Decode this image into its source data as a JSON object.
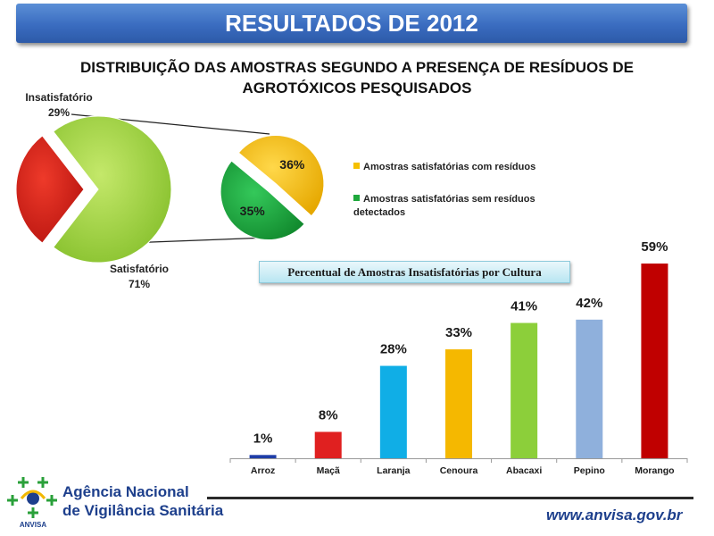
{
  "header": {
    "title": "RESULTADOS DE 2012",
    "subtitle_line1": "DISTRIBUIÇÃO DAS AMOSTRAS SEGUNDO A PRESENÇA DE RESÍDUOS DE",
    "subtitle_line2": "AGROTÓXICOS PESQUISADOS"
  },
  "chart_data": [
    {
      "type": "pie",
      "labels": [
        "Insatisfatório",
        "Satisfatório"
      ],
      "values": [
        29,
        71
      ],
      "value_labels": [
        "29%",
        "71%"
      ],
      "colors": [
        "#d32f2f",
        "#9ccc3c"
      ]
    },
    {
      "type": "pie",
      "labels": [
        "Amostras satisfatórias com resíduos",
        "Amostras satisfatórias sem resíduos detectados"
      ],
      "values": [
        36,
        35
      ],
      "value_labels": [
        "36%",
        "35%"
      ],
      "colors": [
        "#f5c000",
        "#1ea83c"
      ],
      "legend_position": "right"
    },
    {
      "type": "bar",
      "title": "Percentual de Amostras Insatisfatórias por Cultura",
      "categories": [
        "Arroz",
        "Maçã",
        "Laranja",
        "Cenoura",
        "Abacaxi",
        "Pepino",
        "Morango"
      ],
      "values": [
        1,
        8,
        28,
        33,
        41,
        42,
        59
      ],
      "value_labels": [
        "1%",
        "8%",
        "28%",
        "33%",
        "41%",
        "42%",
        "59%"
      ],
      "colors": [
        "#1f3ea8",
        "#e02020",
        "#10aee6",
        "#f5b800",
        "#8ccf3a",
        "#8fb0dc",
        "#c00000"
      ],
      "ylim": [
        0,
        59
      ]
    }
  ],
  "logo": {
    "line1": "Agência Nacional",
    "line2": "de Vigilância Sanitária",
    "abbrev": "ANVISA"
  },
  "footer": {
    "url": "www.anvisa.gov.br"
  }
}
